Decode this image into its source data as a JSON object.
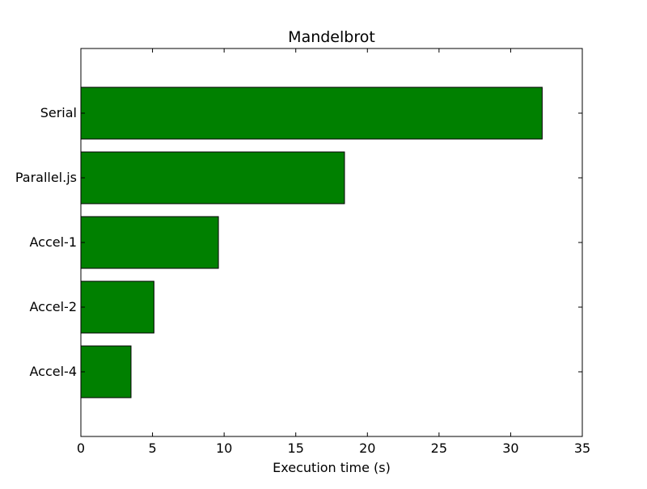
{
  "chart_data": {
    "type": "bar",
    "orientation": "horizontal",
    "title": "Mandelbrot",
    "xlabel": "Execution time (s)",
    "ylabel": "",
    "categories": [
      "Serial",
      "Parallel.js",
      "Accel-1",
      "Accel-2",
      "Accel-4"
    ],
    "values": [
      32.2,
      18.4,
      9.6,
      5.1,
      3.5
    ],
    "xlim": [
      0,
      35
    ],
    "xticks": [
      0,
      5,
      10,
      15,
      20,
      25,
      30,
      35
    ],
    "grid": false,
    "legend": "none",
    "bar_color": "#008000",
    "edge_color": "#000000"
  }
}
